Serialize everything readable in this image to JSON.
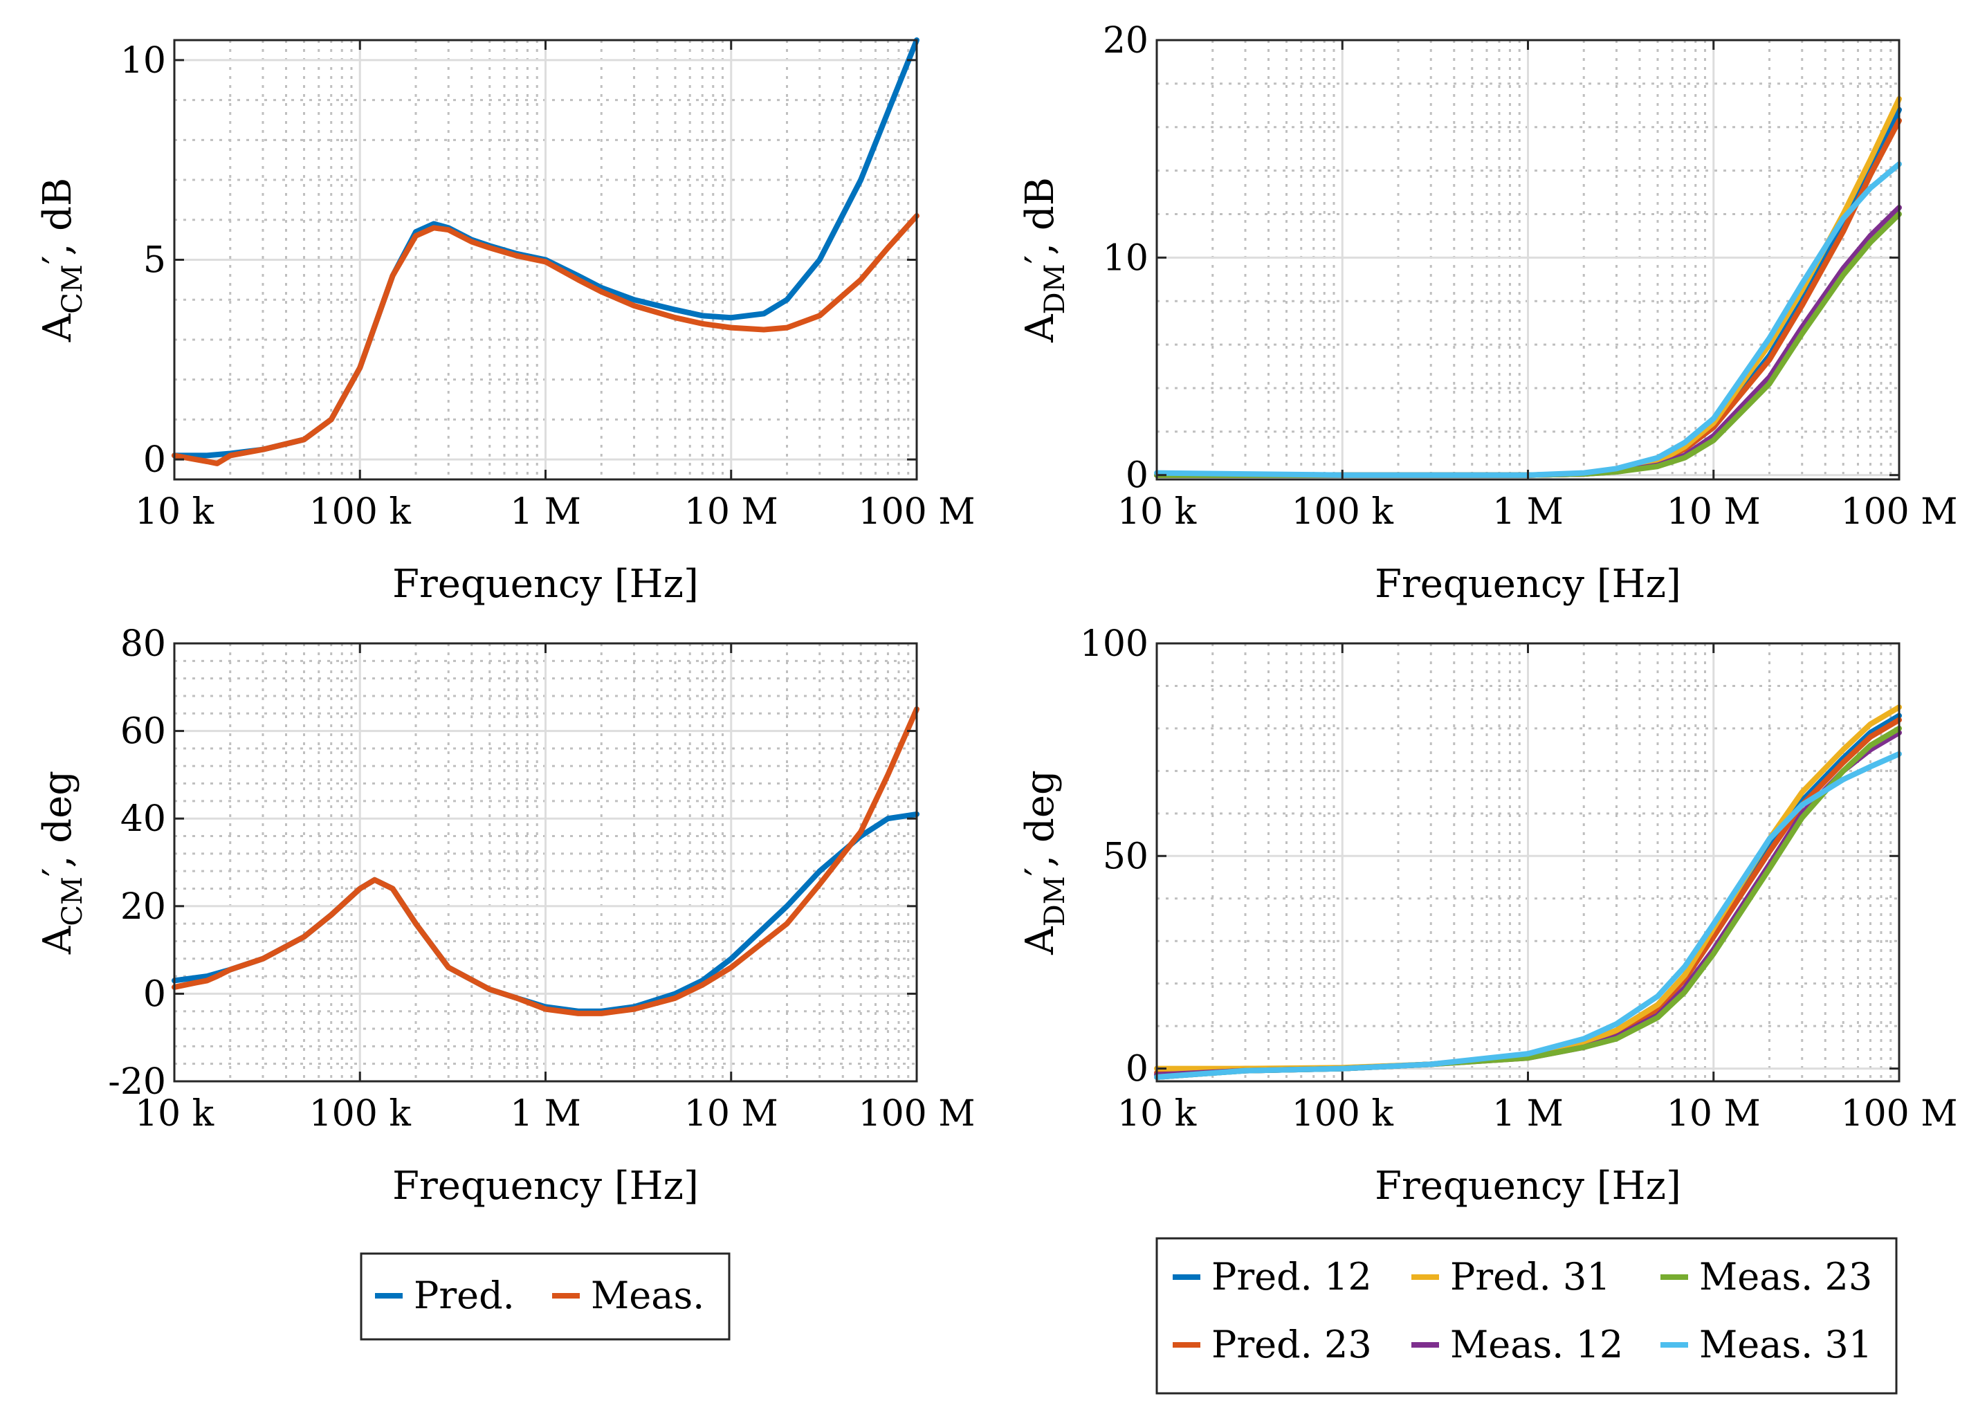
{
  "legends": {
    "cm": [
      {
        "label": "Pred.",
        "color": "#0072BD"
      },
      {
        "label": "Meas.",
        "color": "#D95319"
      }
    ],
    "dm": [
      {
        "label": "Pred. 12",
        "color": "#0072BD"
      },
      {
        "label": "Pred. 31",
        "color": "#EDB120"
      },
      {
        "label": "Meas. 23",
        "color": "#77AC30"
      },
      {
        "label": "Pred. 23",
        "color": "#D95319"
      },
      {
        "label": "Meas. 12",
        "color": "#7E2F8E"
      },
      {
        "label": "Meas. 31",
        "color": "#4DBEEE"
      }
    ]
  },
  "chart_data": [
    {
      "id": "cm-mag",
      "type": "line",
      "xscale": "log",
      "xlim": [
        10000,
        100000000
      ],
      "ylim": [
        -0.5,
        10.5
      ],
      "xticks": [
        10000,
        100000,
        1000000,
        10000000,
        100000000
      ],
      "xtick_labels": [
        "10 k",
        "100 k",
        "1 M",
        "10 M",
        "100 M"
      ],
      "yticks": [
        0,
        5,
        10
      ],
      "ytick_labels": [
        "0",
        "5",
        "10"
      ],
      "xlabel": "Frequency [Hz]",
      "ylabel": {
        "main": "A",
        "sub": "CM",
        "suffix": "′, dB"
      },
      "series": [
        {
          "name": "Pred.",
          "color": "#0072BD",
          "x": [
            10000,
            15000,
            20000,
            30000,
            50000,
            70000,
            100000,
            150000,
            200000,
            250000,
            300000,
            400000,
            500000,
            700000,
            1000000,
            1500000,
            2000000,
            3000000,
            5000000,
            7000000,
            10000000,
            15000000,
            20000000,
            30000000,
            50000000,
            70000000,
            100000000
          ],
          "y": [
            0.1,
            0.1,
            0.15,
            0.25,
            0.5,
            1.0,
            2.3,
            4.6,
            5.7,
            5.9,
            5.8,
            5.5,
            5.35,
            5.15,
            5.0,
            4.6,
            4.3,
            4.0,
            3.75,
            3.6,
            3.55,
            3.65,
            4.0,
            5.0,
            7.0,
            8.7,
            10.5
          ]
        },
        {
          "name": "Meas.",
          "color": "#D95319",
          "x": [
            10000,
            13000,
            15000,
            17000,
            20000,
            30000,
            50000,
            70000,
            100000,
            150000,
            200000,
            250000,
            300000,
            400000,
            500000,
            700000,
            1000000,
            1500000,
            2000000,
            3000000,
            5000000,
            7000000,
            10000000,
            15000000,
            20000000,
            30000000,
            50000000,
            70000000,
            100000000
          ],
          "y": [
            0.1,
            0.0,
            -0.05,
            -0.1,
            0.1,
            0.25,
            0.5,
            1.0,
            2.3,
            4.6,
            5.6,
            5.8,
            5.75,
            5.45,
            5.3,
            5.1,
            4.95,
            4.5,
            4.2,
            3.85,
            3.55,
            3.4,
            3.3,
            3.25,
            3.3,
            3.6,
            4.5,
            5.3,
            6.1
          ]
        }
      ]
    },
    {
      "id": "dm-mag",
      "type": "line",
      "xscale": "log",
      "xlim": [
        10000,
        100000000
      ],
      "ylim": [
        -0.2,
        20
      ],
      "xticks": [
        10000,
        100000,
        1000000,
        10000000,
        100000000
      ],
      "xtick_labels": [
        "10 k",
        "100 k",
        "1 M",
        "10 M",
        "100 M"
      ],
      "yticks": [
        0,
        10,
        20
      ],
      "ytick_labels": [
        "0",
        "10",
        "20"
      ],
      "xlabel": "Frequency [Hz]",
      "ylabel": {
        "main": "A",
        "sub": "DM",
        "suffix": "′, dB"
      },
      "series": [
        {
          "name": "Pred. 12",
          "color": "#0072BD",
          "x": [
            10000,
            100000,
            1000000,
            2000000,
            3000000,
            5000000,
            7000000,
            10000000,
            20000000,
            30000000,
            50000000,
            70000000,
            100000000
          ],
          "y": [
            0,
            0,
            0,
            0.05,
            0.2,
            0.6,
            1.2,
            2.2,
            5.5,
            8.0,
            11.5,
            14.0,
            16.8
          ]
        },
        {
          "name": "Pred. 23",
          "color": "#D95319",
          "x": [
            10000,
            100000,
            1000000,
            2000000,
            3000000,
            5000000,
            7000000,
            10000000,
            20000000,
            30000000,
            50000000,
            70000000,
            100000000
          ],
          "y": [
            0,
            0,
            0,
            0.05,
            0.2,
            0.6,
            1.2,
            2.2,
            5.3,
            7.8,
            11.2,
            13.8,
            16.3
          ]
        },
        {
          "name": "Pred. 31",
          "color": "#EDB120",
          "x": [
            10000,
            100000,
            1000000,
            2000000,
            3000000,
            5000000,
            7000000,
            10000000,
            20000000,
            30000000,
            50000000,
            70000000,
            100000000
          ],
          "y": [
            0,
            0,
            0,
            0.05,
            0.2,
            0.6,
            1.3,
            2.4,
            6.0,
            8.5,
            12.0,
            14.5,
            17.3
          ]
        },
        {
          "name": "Meas. 12",
          "color": "#7E2F8E",
          "x": [
            10000,
            100000,
            1000000,
            2000000,
            3000000,
            5000000,
            7000000,
            10000000,
            20000000,
            30000000,
            50000000,
            70000000,
            100000000
          ],
          "y": [
            0,
            0,
            0,
            0.05,
            0.15,
            0.45,
            0.9,
            1.8,
            4.5,
            6.8,
            9.5,
            11.0,
            12.3
          ]
        },
        {
          "name": "Meas. 23",
          "color": "#77AC30",
          "x": [
            10000,
            100000,
            1000000,
            2000000,
            3000000,
            5000000,
            7000000,
            10000000,
            20000000,
            30000000,
            50000000,
            70000000,
            100000000
          ],
          "y": [
            0,
            0,
            0,
            0.05,
            0.15,
            0.4,
            0.8,
            1.6,
            4.2,
            6.5,
            9.2,
            10.7,
            12.0
          ]
        },
        {
          "name": "Meas. 31",
          "color": "#4DBEEE",
          "x": [
            10000,
            100000,
            1000000,
            2000000,
            3000000,
            5000000,
            7000000,
            10000000,
            20000000,
            30000000,
            50000000,
            70000000,
            100000000
          ],
          "y": [
            0.1,
            0,
            0,
            0.1,
            0.3,
            0.8,
            1.5,
            2.6,
            6.3,
            8.8,
            11.8,
            13.2,
            14.3
          ]
        }
      ]
    },
    {
      "id": "cm-phase",
      "type": "line",
      "xscale": "log",
      "xlim": [
        10000,
        100000000
      ],
      "ylim": [
        -20,
        80
      ],
      "xticks": [
        10000,
        100000,
        1000000,
        10000000,
        100000000
      ],
      "xtick_labels": [
        "10 k",
        "100 k",
        "1 M",
        "10 M",
        "100 M"
      ],
      "yticks": [
        -20,
        0,
        20,
        40,
        60,
        80
      ],
      "ytick_labels": [
        "-20",
        "0",
        "20",
        "40",
        "60",
        "80"
      ],
      "xlabel": "Frequency [Hz]",
      "ylabel": {
        "main": "A",
        "sub": "CM",
        "suffix": "′, deg"
      },
      "series": [
        {
          "name": "Pred.",
          "color": "#0072BD",
          "x": [
            10000,
            15000,
            20000,
            30000,
            50000,
            70000,
            100000,
            120000,
            150000,
            200000,
            300000,
            500000,
            700000,
            1000000,
            1500000,
            2000000,
            3000000,
            5000000,
            7000000,
            10000000,
            20000000,
            30000000,
            50000000,
            70000000,
            100000000
          ],
          "y": [
            3,
            4,
            5.5,
            8,
            13,
            18,
            24,
            26,
            24,
            16,
            6,
            1,
            -1,
            -3,
            -4,
            -4,
            -3,
            0,
            3,
            8,
            20,
            28,
            36,
            40,
            41
          ]
        },
        {
          "name": "Meas.",
          "color": "#D95319",
          "x": [
            10000,
            13000,
            15000,
            17000,
            20000,
            30000,
            50000,
            70000,
            100000,
            120000,
            150000,
            200000,
            300000,
            500000,
            700000,
            1000000,
            1500000,
            2000000,
            3000000,
            5000000,
            7000000,
            10000000,
            20000000,
            30000000,
            50000000,
            70000000,
            100000000
          ],
          "y": [
            1.5,
            2.5,
            3,
            4,
            5.5,
            8,
            13,
            18,
            24,
            26,
            24,
            16,
            6,
            1,
            -1,
            -3.5,
            -4.5,
            -4.5,
            -3.5,
            -1,
            2,
            6,
            16,
            25,
            37,
            50,
            65
          ]
        }
      ]
    },
    {
      "id": "dm-phase",
      "type": "line",
      "xscale": "log",
      "xlim": [
        10000,
        100000000
      ],
      "ylim": [
        -3,
        100
      ],
      "xticks": [
        10000,
        100000,
        1000000,
        10000000,
        100000000
      ],
      "xtick_labels": [
        "10 k",
        "100 k",
        "1 M",
        "10 M",
        "100 M"
      ],
      "yticks": [
        0,
        50,
        100
      ],
      "ytick_labels": [
        "0",
        "50",
        "100"
      ],
      "xlabel": "Frequency [Hz]",
      "ylabel": {
        "main": "A",
        "sub": "DM",
        "suffix": "′, deg"
      },
      "series": [
        {
          "name": "Pred. 12",
          "color": "#0072BD",
          "x": [
            10000,
            30000,
            100000,
            300000,
            1000000,
            2000000,
            3000000,
            5000000,
            7000000,
            10000000,
            20000000,
            30000000,
            50000000,
            70000000,
            100000000
          ],
          "y": [
            -2,
            -0.5,
            0,
            1,
            3,
            6,
            9,
            15,
            22,
            32,
            52,
            63,
            73,
            79,
            83
          ]
        },
        {
          "name": "Pred. 23",
          "color": "#D95319",
          "x": [
            10000,
            30000,
            100000,
            300000,
            1000000,
            2000000,
            3000000,
            5000000,
            7000000,
            10000000,
            20000000,
            30000000,
            50000000,
            70000000,
            100000000
          ],
          "y": [
            -1,
            0,
            0,
            1,
            3,
            5.5,
            8.5,
            14,
            21,
            31,
            51,
            62,
            72,
            78,
            82
          ]
        },
        {
          "name": "Pred. 31",
          "color": "#EDB120",
          "x": [
            10000,
            30000,
            100000,
            300000,
            1000000,
            2000000,
            3000000,
            5000000,
            7000000,
            10000000,
            20000000,
            30000000,
            50000000,
            70000000,
            100000000
          ],
          "y": [
            0,
            0,
            0.2,
            1,
            3,
            6,
            9,
            15,
            22,
            33,
            54,
            65,
            75,
            81,
            85
          ]
        },
        {
          "name": "Meas. 12",
          "color": "#7E2F8E",
          "x": [
            10000,
            30000,
            100000,
            300000,
            1000000,
            2000000,
            3000000,
            5000000,
            7000000,
            10000000,
            20000000,
            30000000,
            50000000,
            70000000,
            100000000
          ],
          "y": [
            -1.5,
            -0.5,
            0,
            1,
            2.5,
            5,
            7.5,
            12.5,
            19,
            28,
            48,
            60,
            70,
            75,
            79
          ]
        },
        {
          "name": "Meas. 23",
          "color": "#77AC30",
          "x": [
            10000,
            30000,
            100000,
            300000,
            1000000,
            2000000,
            3000000,
            5000000,
            7000000,
            10000000,
            20000000,
            30000000,
            50000000,
            70000000,
            100000000
          ],
          "y": [
            -2,
            -0.5,
            0,
            1,
            2.5,
            5,
            7,
            12,
            18,
            27,
            47,
            59,
            70,
            76,
            80
          ]
        },
        {
          "name": "Meas. 31",
          "color": "#4DBEEE",
          "x": [
            10000,
            30000,
            100000,
            300000,
            1000000,
            2000000,
            3000000,
            5000000,
            7000000,
            10000000,
            20000000,
            30000000,
            50000000,
            70000000,
            100000000
          ],
          "y": [
            -2,
            -0.5,
            0,
            1,
            3.5,
            7,
            10.5,
            17,
            24,
            34,
            54,
            62,
            68,
            71,
            74
          ]
        }
      ]
    }
  ]
}
